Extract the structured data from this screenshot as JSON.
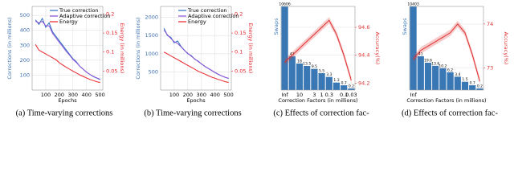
{
  "chart_data": [
    {
      "type": "line",
      "caption": "(a) Time-varying corrections",
      "xlabel": "Epochs",
      "ylabel": "Corrections (in millions)",
      "y2label": "Energy (in millions)",
      "x": [
        25,
        50,
        75,
        100,
        125,
        150,
        175,
        200,
        225,
        250,
        275,
        300,
        325,
        350,
        375,
        400,
        425,
        450,
        475,
        500
      ],
      "xlim": [
        0,
        520
      ],
      "xticks": [
        100,
        200,
        300,
        400,
        500
      ],
      "ylim": [
        0,
        560
      ],
      "yticks": [
        100,
        200,
        300,
        400,
        500
      ],
      "y2lim": [
        0,
        0.22
      ],
      "y2ticks": [
        0.05,
        0.1,
        0.15,
        0.2
      ],
      "grid": true,
      "series": [
        {
          "name": "True correction",
          "color": "#2f6fc2",
          "values": [
            470,
            440,
            480,
            420,
            450,
            390,
            360,
            330,
            300,
            270,
            240,
            210,
            190,
            160,
            140,
            120,
            105,
            90,
            80,
            70
          ]
        },
        {
          "name": "Adaptive correction",
          "color": "#8a4fd8",
          "values": [
            460,
            450,
            460,
            430,
            430,
            380,
            350,
            320,
            290,
            260,
            235,
            205,
            185,
            160,
            140,
            120,
            105,
            92,
            82,
            72
          ]
        },
        {
          "name": "Energy",
          "color": "#e8222a",
          "axis": "y2",
          "values": [
            0.12,
            0.105,
            0.1,
            0.095,
            0.09,
            0.085,
            0.08,
            0.072,
            0.066,
            0.06,
            0.055,
            0.05,
            0.045,
            0.04,
            0.036,
            0.032,
            0.028,
            0.025,
            0.022,
            0.02
          ]
        }
      ]
    },
    {
      "type": "line",
      "caption": "(b) Time-varying corrections",
      "xlabel": "Epochs",
      "ylabel": "Corrections (in millions)",
      "y2label": "Energy (in millions)",
      "x": [
        25,
        50,
        75,
        100,
        125,
        150,
        175,
        200,
        225,
        250,
        275,
        300,
        325,
        350,
        375,
        400,
        425,
        450,
        475,
        500
      ],
      "xlim": [
        0,
        520
      ],
      "xticks": [
        100,
        200,
        300,
        400,
        500
      ],
      "ylim": [
        0,
        2300
      ],
      "yticks": [
        500,
        1000,
        1500,
        2000
      ],
      "y2lim": [
        0,
        0.22
      ],
      "y2ticks": [
        0.05,
        0.1,
        0.15,
        0.2
      ],
      "grid": true,
      "series": [
        {
          "name": "True correction",
          "color": "#2f6fc2",
          "values": [
            1700,
            1500,
            1450,
            1300,
            1350,
            1200,
            1100,
            1000,
            950,
            850,
            800,
            720,
            650,
            600,
            540,
            480,
            430,
            390,
            350,
            320
          ]
        },
        {
          "name": "Adaptive correction",
          "color": "#8a4fd8",
          "values": [
            1650,
            1520,
            1420,
            1330,
            1280,
            1190,
            1090,
            1010,
            930,
            860,
            790,
            720,
            655,
            595,
            540,
            485,
            435,
            390,
            352,
            322
          ]
        },
        {
          "name": "Energy",
          "color": "#e8222a",
          "axis": "y2",
          "values": [
            0.1,
            0.095,
            0.09,
            0.085,
            0.08,
            0.075,
            0.07,
            0.065,
            0.06,
            0.055,
            0.05,
            0.046,
            0.042,
            0.038,
            0.034,
            0.031,
            0.028,
            0.025,
            0.022,
            0.02
          ]
        }
      ]
    },
    {
      "type": "bar",
      "caption": "(c) Effects of correction fac-",
      "xlabel": "Correction Factors (in millions)",
      "ylabel": "Swaps",
      "y2label": "Accuracy(%)",
      "categories": [
        "Inf",
        null,
        "10",
        null,
        "3",
        "1",
        "0.3",
        null,
        "0.1",
        "0.03"
      ],
      "log_scale": true,
      "y2lim": [
        94.15,
        94.75
      ],
      "y2ticks": [
        94.2,
        94.4,
        94.6
      ],
      "grid": true,
      "series": [
        {
          "color": "#3a78b5",
          "values": [
            10606,
            41,
            18,
            13.5,
            9.5,
            5.5,
            3.3,
            1.3,
            0.7,
            0.2
          ]
        },
        {
          "color": "#e03030",
          "axis": "y2",
          "values": [
            94.35,
            94.4,
            94.45,
            94.5,
            94.55,
            94.6,
            94.65,
            94.55,
            94.4,
            94.22
          ]
        }
      ]
    },
    {
      "type": "bar",
      "caption": "(d) Effects of correction fac-",
      "xlabel": "Correction Factors (in millions)",
      "ylabel": "Swaps",
      "y2label": "Accuracy(%)",
      "categories": [
        "Inf",
        null,
        null,
        null,
        null,
        null,
        null,
        null,
        null,
        null
      ],
      "log_scale": true,
      "y2lim": [
        72.5,
        74.4
      ],
      "y2ticks": [
        73,
        74
      ],
      "grid": true,
      "series": [
        {
          "color": "#3a78b5",
          "values": [
            10403,
            41,
            19.6,
            13.6,
            10.2,
            6.2,
            3.4,
            1.5,
            0.7,
            0.2
          ]
        },
        {
          "color": "#e03030",
          "axis": "y2",
          "values": [
            73.2,
            73.4,
            73.5,
            73.6,
            73.7,
            73.8,
            74.0,
            73.8,
            73.3,
            72.7
          ]
        }
      ]
    }
  ]
}
